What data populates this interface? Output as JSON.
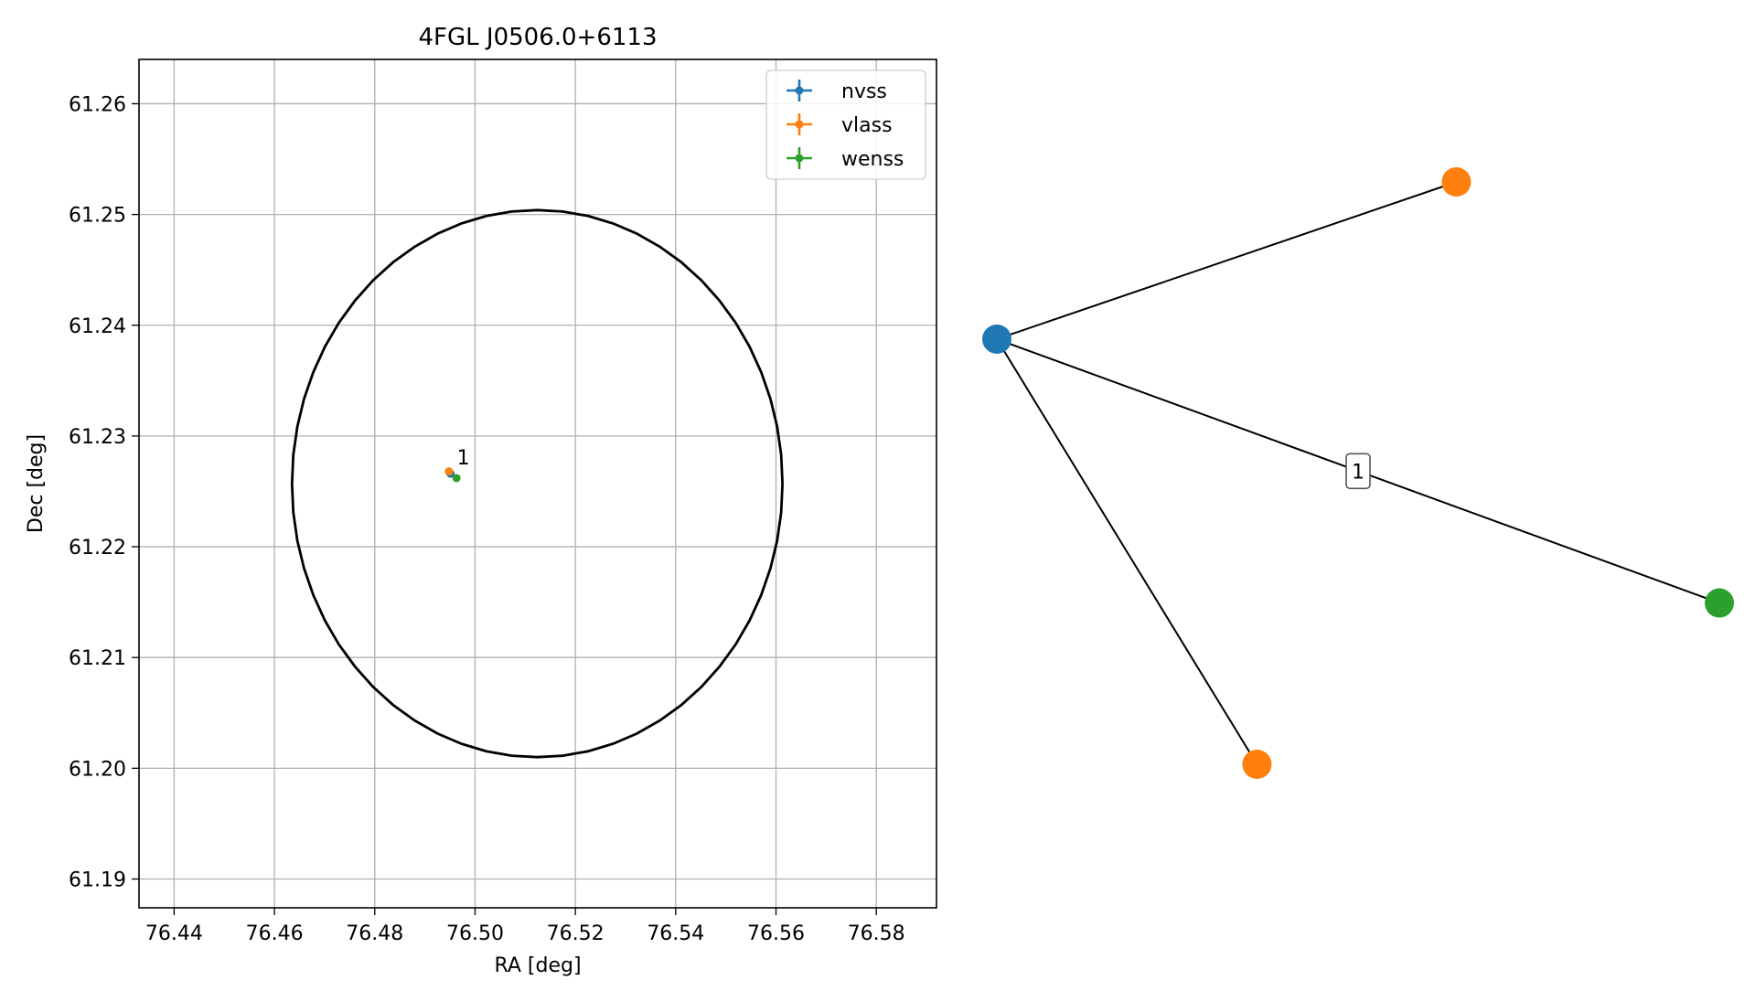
{
  "chart_data": [
    {
      "type": "scatter",
      "title": "4FGL J0506.0+6113",
      "xlabel": "RA [deg]",
      "ylabel": "Dec [deg]",
      "xlim": [
        76.433,
        76.592
      ],
      "ylim": [
        61.1874,
        61.264
      ],
      "xticks": [
        76.44,
        76.46,
        76.48,
        76.5,
        76.52,
        76.54,
        76.56,
        76.58
      ],
      "xtick_labels": [
        "76.44",
        "76.46",
        "76.48",
        "76.50",
        "76.52",
        "76.54",
        "76.56",
        "76.58"
      ],
      "yticks": [
        61.19,
        61.2,
        61.21,
        61.22,
        61.23,
        61.24,
        61.25,
        61.26
      ],
      "ytick_labels": [
        "61.19",
        "61.20",
        "61.21",
        "61.22",
        "61.23",
        "61.24",
        "61.25",
        "61.26"
      ],
      "grid": true,
      "legend_position": "top-right",
      "series": [
        {
          "name": "nvss",
          "color": "#1f77b4",
          "points": [
            {
              "x": 76.4951,
              "y": 61.2266
            }
          ]
        },
        {
          "name": "vlass",
          "color": "#ff7f0e",
          "points": [
            {
              "x": 76.4948,
              "y": 61.2268
            }
          ]
        },
        {
          "name": "wenss",
          "color": "#2ca02c",
          "points": [
            {
              "x": 76.4963,
              "y": 61.2262
            }
          ]
        }
      ],
      "ellipse": {
        "center_ra": 76.5124,
        "center_dec": 61.2257,
        "semi_ra": 0.0489,
        "semi_dec": 0.0247,
        "color": "#000000"
      },
      "annotations": [
        {
          "text": "1",
          "x": 76.4951,
          "y": 61.2266
        }
      ]
    },
    {
      "type": "network",
      "nodes": [
        {
          "id": "n0",
          "color": "#1f77b4",
          "x": 0.0,
          "y": 0.73
        },
        {
          "id": "n1",
          "color": "#ff7f0e",
          "x": 0.636,
          "y": 1.0
        },
        {
          "id": "n2",
          "color": "#2ca02c",
          "x": 1.0,
          "y": 0.277
        },
        {
          "id": "n3",
          "color": "#ff7f0e",
          "x": 0.36,
          "y": 0.0
        }
      ],
      "edges": [
        {
          "source": "n0",
          "target": "n1",
          "label": ""
        },
        {
          "source": "n0",
          "target": "n2",
          "label": "1"
        },
        {
          "source": "n0",
          "target": "n3",
          "label": ""
        }
      ]
    }
  ]
}
